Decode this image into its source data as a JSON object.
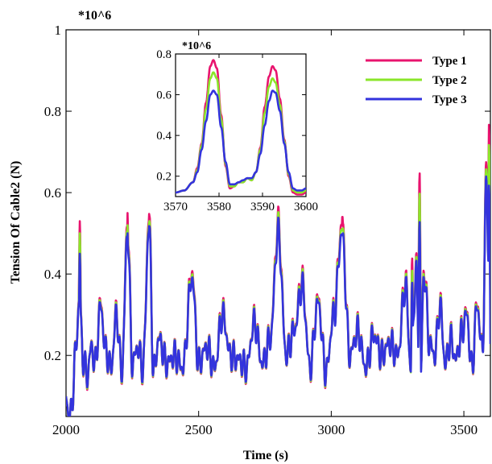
{
  "chart_data": [
    {
      "type": "line",
      "xlabel": "Time (s)",
      "ylabel": "Tension Of Cable2 (N)",
      "multiplier": "*10^6",
      "xlim": [
        2000,
        3600
      ],
      "ylim": [
        0.05,
        1.0
      ],
      "x_ticks": [
        2000,
        2500,
        3000,
        3500
      ],
      "x_tick_labels": [
        "2000",
        "2500",
        "3000",
        "3500"
      ],
      "y_ticks": [
        0.2,
        0.4,
        0.6,
        0.8,
        1.0
      ],
      "y_tick_labels": [
        "0.2",
        "0.4",
        "0.6",
        "0.8",
        "1"
      ],
      "grid": false,
      "legend": "top-right",
      "series": [
        {
          "name": "Type 1",
          "color": "#e8146e"
        },
        {
          "name": "Type 2",
          "color": "#8ae62a"
        },
        {
          "name": "Type 3",
          "color": "#3333dd"
        }
      ],
      "baseline_x": [
        2000,
        2010,
        2020,
        2035,
        2050,
        2065,
        2080,
        2095,
        2110,
        2130,
        2150,
        2170,
        2190,
        2210,
        2232,
        2250,
        2270,
        2290,
        2313,
        2330,
        2350,
        2380,
        2410,
        2440,
        2475,
        2500,
        2530,
        2560,
        2590,
        2620,
        2650,
        2680,
        2710,
        2740,
        2770,
        2800,
        2830,
        2860,
        2890,
        2920,
        2950,
        2980,
        3010,
        3040,
        3070,
        3100,
        3130,
        3160,
        3190,
        3220,
        3250,
        3280,
        3300,
        3320,
        3335,
        3350,
        3370,
        3390,
        3410,
        3430,
        3450,
        3470,
        3490,
        3510,
        3530,
        3550,
        3570,
        3585,
        3600
      ],
      "baseline_y": [
        0.1,
        0.05,
        0.06,
        0.2,
        0.33,
        0.19,
        0.15,
        0.22,
        0.18,
        0.32,
        0.21,
        0.17,
        0.3,
        0.16,
        0.5,
        0.18,
        0.22,
        0.17,
        0.52,
        0.16,
        0.24,
        0.18,
        0.2,
        0.17,
        0.39,
        0.18,
        0.22,
        0.17,
        0.3,
        0.2,
        0.19,
        0.17,
        0.28,
        0.18,
        0.24,
        0.5,
        0.2,
        0.26,
        0.37,
        0.17,
        0.33,
        0.16,
        0.3,
        0.5,
        0.2,
        0.26,
        0.17,
        0.25,
        0.2,
        0.23,
        0.2,
        0.37,
        0.17,
        0.4,
        0.12,
        0.4,
        0.23,
        0.2,
        0.32,
        0.18,
        0.24,
        0.19,
        0.25,
        0.3,
        0.17,
        0.32,
        0.21,
        0.62,
        0.16
      ],
      "peaks": [
        {
          "x": 2052,
          "values": [
            0.53,
            0.5,
            0.45
          ]
        },
        {
          "x": 2232,
          "values": [
            0.55,
            0.52,
            0.5
          ]
        },
        {
          "x": 2313,
          "values": [
            0.55,
            0.53,
            0.52
          ]
        },
        {
          "x": 2802,
          "values": [
            0.55,
            0.52,
            0.5
          ]
        },
        {
          "x": 3042,
          "values": [
            0.55,
            0.52,
            0.5
          ]
        },
        {
          "x": 3305,
          "values": [
            0.44,
            0.41,
            0.38
          ]
        },
        {
          "x": 3333,
          "values": [
            0.65,
            0.6,
            0.53
          ]
        },
        {
          "x": 3595,
          "values": [
            0.77,
            0.72,
            0.62
          ]
        }
      ]
    },
    {
      "type": "line",
      "multiplier": "*10^6",
      "xlim": [
        3570,
        3600
      ],
      "ylim": [
        0.1,
        0.8
      ],
      "x_ticks": [
        3570,
        3580,
        3590,
        3600
      ],
      "x_tick_labels": [
        "3570",
        "3580",
        "3590",
        "3600"
      ],
      "y_ticks": [
        0.2,
        0.4,
        0.6,
        0.8
      ],
      "y_tick_labels": [
        "0.2",
        "0.4",
        "0.6",
        "0.8"
      ],
      "grid": false,
      "x": [
        3570,
        3572,
        3574,
        3575,
        3576,
        3577,
        3578,
        3578.7,
        3579.5,
        3580.5,
        3581.5,
        3582.5,
        3583.5,
        3584.5,
        3585.5,
        3586.5,
        3587.5,
        3588.5,
        3589.5,
        3590.5,
        3591.5,
        3592.3,
        3593,
        3594,
        3595,
        3596,
        3597,
        3598,
        3599,
        3600
      ],
      "series": [
        {
          "name": "Type 1",
          "values": [
            0.12,
            0.13,
            0.17,
            0.24,
            0.36,
            0.56,
            0.74,
            0.77,
            0.73,
            0.5,
            0.25,
            0.14,
            0.15,
            0.17,
            0.17,
            0.19,
            0.18,
            0.22,
            0.34,
            0.54,
            0.69,
            0.74,
            0.72,
            0.58,
            0.38,
            0.2,
            0.12,
            0.11,
            0.11,
            0.12
          ]
        },
        {
          "name": "Type 2",
          "values": [
            0.12,
            0.13,
            0.17,
            0.23,
            0.35,
            0.53,
            0.68,
            0.71,
            0.68,
            0.48,
            0.26,
            0.15,
            0.15,
            0.17,
            0.17,
            0.19,
            0.18,
            0.22,
            0.33,
            0.51,
            0.64,
            0.68,
            0.66,
            0.55,
            0.37,
            0.21,
            0.13,
            0.12,
            0.12,
            0.13
          ]
        },
        {
          "name": "Type 3",
          "values": [
            0.12,
            0.13,
            0.17,
            0.22,
            0.33,
            0.47,
            0.6,
            0.62,
            0.6,
            0.44,
            0.27,
            0.16,
            0.16,
            0.17,
            0.18,
            0.19,
            0.19,
            0.22,
            0.31,
            0.45,
            0.57,
            0.62,
            0.61,
            0.52,
            0.36,
            0.22,
            0.14,
            0.13,
            0.13,
            0.14
          ]
        }
      ]
    }
  ]
}
